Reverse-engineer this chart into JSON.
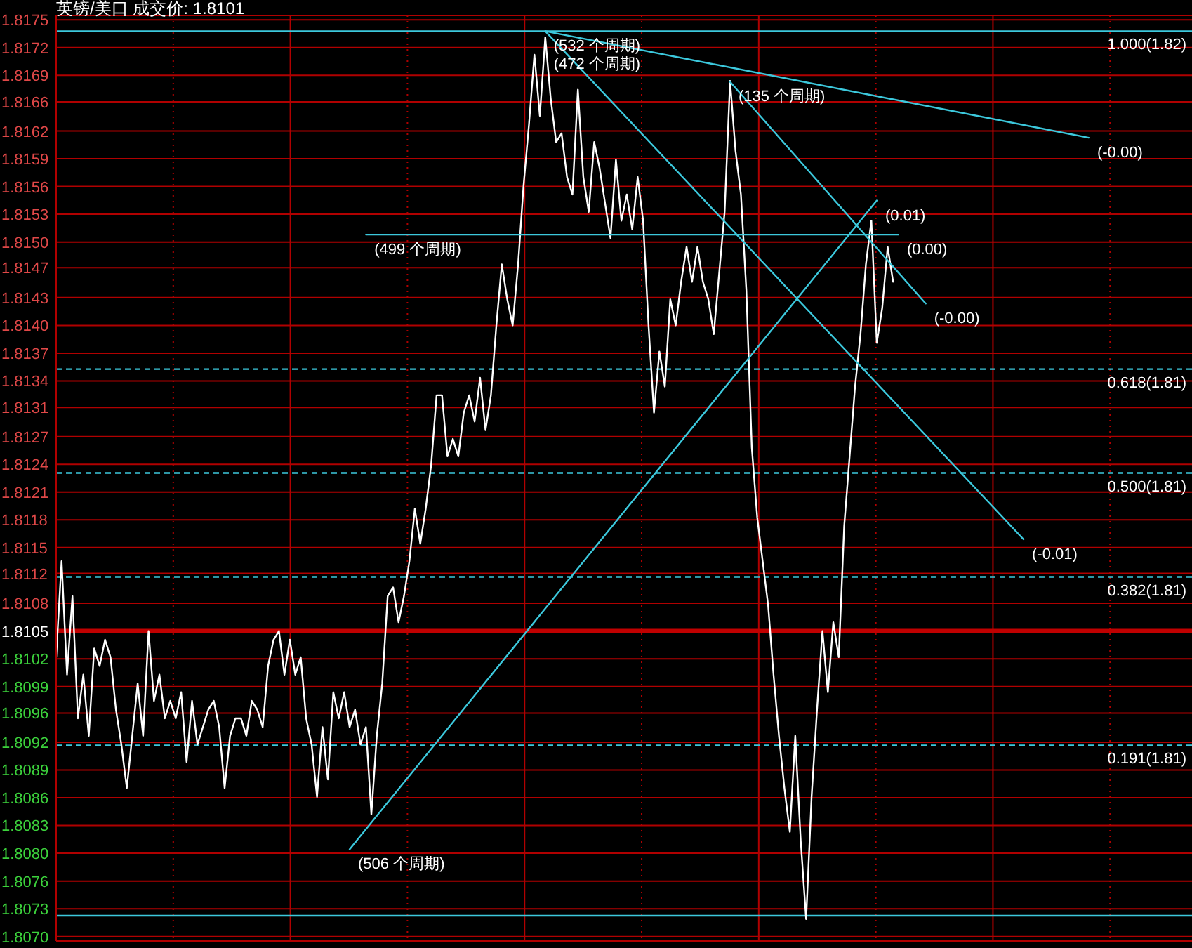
{
  "chart_data": {
    "type": "line",
    "title": "英镑/美口 成交价: 1.8101",
    "marker": "none",
    "grid": true,
    "tick_labels": "y",
    "categories": [
      null,
      null,
      null,
      null,
      null,
      null,
      null,
      null,
      null,
      null,
      null,
      null,
      null,
      null,
      null,
      null,
      null,
      null,
      null,
      null,
      null,
      null,
      null,
      null,
      null,
      null,
      null,
      null,
      null,
      null,
      null,
      null,
      null,
      null,
      null,
      null,
      null,
      null,
      null,
      null,
      null,
      null,
      null,
      null,
      null,
      null,
      null,
      null,
      null,
      null,
      null,
      null,
      null,
      null,
      null,
      null,
      null,
      null,
      null,
      null,
      null,
      null,
      null,
      null,
      null,
      null,
      null,
      null,
      null,
      null,
      null,
      null,
      null,
      null,
      null,
      null,
      null,
      null,
      null,
      null,
      null,
      null,
      null,
      null,
      null,
      null,
      null,
      null,
      null,
      null,
      null,
      null,
      null,
      null,
      null,
      null,
      null,
      null,
      null,
      null,
      null,
      null,
      null,
      null,
      null,
      null,
      null,
      null,
      null,
      null,
      null,
      null,
      null,
      null,
      null,
      null,
      null,
      null,
      null,
      null,
      null,
      null,
      null,
      null,
      null,
      null,
      null,
      null,
      null,
      null,
      null,
      null,
      null,
      null,
      null,
      null,
      null,
      null,
      null,
      null,
      null,
      null,
      null,
      null,
      null,
      null,
      null,
      null,
      null,
      null,
      null,
      null,
      null,
      null,
      null,
      null,
      null,
      null,
      null,
      null,
      null,
      null,
      null,
      null,
      null,
      null,
      null,
      null,
      null,
      null,
      null,
      null,
      null,
      null,
      null,
      null,
      null,
      null,
      null,
      null,
      null,
      null,
      null,
      null,
      null,
      null,
      null,
      null,
      null,
      null,
      null,
      null,
      null,
      null,
      null,
      null,
      null,
      null,
      null,
      null,
      null,
      null,
      null,
      null,
      null,
      null,
      null,
      null,
      null,
      null
    ],
    "ylim": [
      1.80695,
      1.81755
    ],
    "yticks": [
      {
        "value": 1.807,
        "label": "1.8070"
      },
      {
        "value": 1.807318,
        "label": "1.8073"
      },
      {
        "value": 1.807636,
        "label": "1.8076"
      },
      {
        "value": 1.807955,
        "label": "1.8080"
      },
      {
        "value": 1.808273,
        "label": "1.8083"
      },
      {
        "value": 1.808591,
        "label": "1.8086"
      },
      {
        "value": 1.808909,
        "label": "1.8089"
      },
      {
        "value": 1.809227,
        "label": "1.8092"
      },
      {
        "value": 1.80956,
        "label": "1.8096"
      },
      {
        "value": 1.809864,
        "label": "1.8099"
      },
      {
        "value": 1.810182,
        "label": "1.8102"
      },
      {
        "value": 1.8105,
        "label": "1.8105"
      },
      {
        "value": 1.810818,
        "label": "1.8108"
      },
      {
        "value": 1.81116,
        "label": "1.8112"
      },
      {
        "value": 1.811455,
        "label": "1.8115"
      },
      {
        "value": 1.811773,
        "label": "1.8118"
      },
      {
        "value": 1.812091,
        "label": "1.8121"
      },
      {
        "value": 1.812409,
        "label": "1.8124"
      },
      {
        "value": 1.812727,
        "label": "1.8127"
      },
      {
        "value": 1.81306,
        "label": "1.8131"
      },
      {
        "value": 1.813364,
        "label": "1.8134"
      },
      {
        "value": 1.813682,
        "label": "1.8137"
      },
      {
        "value": 1.814,
        "label": "1.8140"
      },
      {
        "value": 1.814318,
        "label": "1.8143"
      },
      {
        "value": 1.81466,
        "label": "1.8147"
      },
      {
        "value": 1.814955,
        "label": "1.8150"
      },
      {
        "value": 1.815273,
        "label": "1.8153"
      },
      {
        "value": 1.815591,
        "label": "1.8156"
      },
      {
        "value": 1.815909,
        "label": "1.8159"
      },
      {
        "value": 1.816227,
        "label": "1.8162"
      },
      {
        "value": 1.81656,
        "label": "1.8166"
      },
      {
        "value": 1.816864,
        "label": "1.8169"
      },
      {
        "value": 1.817182,
        "label": "1.8172"
      },
      {
        "value": 1.8175,
        "label": "1.8175"
      }
    ],
    "ref_lines": [
      {
        "axis": "y",
        "value": 1.8105,
        "color": "#c00000",
        "line_style": "solid"
      },
      {
        "axis": "y",
        "value": 1.81737,
        "label": "1.000(1.82)",
        "color": "#3cc8dc",
        "line_style": "solid"
      },
      {
        "axis": "y",
        "value": 1.8135,
        "label": "0.618(1.81)",
        "color": "#3cc8dc",
        "line_style": "dashed"
      },
      {
        "axis": "y",
        "value": 1.81231,
        "label": "0.500(1.81)",
        "color": "#3cc8dc",
        "line_style": "dashed"
      },
      {
        "axis": "y",
        "value": 1.81112,
        "label": "0.382(1.81)",
        "color": "#3cc8dc",
        "line_style": "dashed"
      },
      {
        "axis": "y",
        "value": 1.80919,
        "label": "0.191(1.81)",
        "color": "#3cc8dc",
        "line_style": "dashed"
      },
      {
        "axis": "y",
        "value": 1.80724,
        "color": "#3cc8dc",
        "line_style": "solid"
      }
    ],
    "annotations": [
      "(532 个周期)",
      "(472 个周期)",
      "(135 个周期)",
      "(506 个周期)",
      "(499 个周期)"
    ],
    "series": [
      {
        "color": "#ffffff",
        "values": [
          1.8102,
          1.8113,
          1.81,
          1.8109,
          1.8095,
          1.81,
          1.8093,
          1.8103,
          1.8101,
          1.8104,
          1.8102,
          1.8096,
          1.8092,
          1.8087,
          1.8093,
          1.8099,
          1.8093,
          1.8105,
          1.8097,
          1.81,
          1.8095,
          1.8097,
          1.8095,
          1.8098,
          1.809,
          1.8097,
          1.8092,
          1.8094,
          1.8096,
          1.8097,
          1.8094,
          1.8087,
          1.8093,
          1.8095,
          1.8095,
          1.8093,
          1.8097,
          1.8096,
          1.8094,
          1.8101,
          1.8104,
          1.8105,
          1.81,
          1.8104,
          1.81,
          1.8102,
          1.8095,
          1.8092,
          1.8086,
          1.8094,
          1.8088,
          1.8098,
          1.8095,
          1.8098,
          1.8094,
          1.8096,
          1.8092,
          1.8094,
          1.8084,
          1.8093,
          1.8099,
          1.8109,
          1.811,
          1.8106,
          1.8109,
          1.8113,
          1.8119,
          1.8115,
          1.8119,
          1.8124,
          1.8132,
          1.8132,
          1.8125,
          1.8127,
          1.8125,
          1.813,
          1.8132,
          1.8129,
          1.8134,
          1.8128,
          1.8132,
          1.814,
          1.8147,
          1.8143,
          1.814,
          1.8147,
          1.8156,
          1.8163,
          1.8171,
          1.8164,
          1.8173,
          1.8166,
          1.8161,
          1.8162,
          1.8157,
          1.8155,
          1.8167,
          1.8157,
          1.8153,
          1.8161,
          1.8158,
          1.8154,
          1.815,
          1.8159,
          1.8152,
          1.8155,
          1.8151,
          1.8157,
          1.8152,
          1.814,
          1.813,
          1.8137,
          1.8133,
          1.8143,
          1.814,
          1.8145,
          1.8149,
          1.8145,
          1.8149,
          1.8145,
          1.8143,
          1.8139,
          1.8146,
          1.8153,
          1.8168,
          1.816,
          1.8155,
          1.8144,
          1.8126,
          1.8118,
          1.8113,
          1.8108,
          1.81,
          1.8093,
          1.8087,
          1.8082,
          1.8093,
          1.8081,
          1.8072,
          1.8086,
          1.8096,
          1.8105,
          1.8098,
          1.8106,
          1.8102,
          1.8117,
          1.8125,
          1.8133,
          1.8139,
          1.8147,
          1.8152,
          1.8138,
          1.8142,
          1.8149,
          1.8145,
          null,
          null,
          null,
          null,
          null,
          null,
          null,
          null,
          null,
          null,
          null,
          null,
          null,
          null,
          null,
          null,
          null,
          null,
          null,
          null,
          null,
          null,
          null,
          null,
          null,
          null,
          null,
          null,
          null,
          null,
          null,
          null,
          null,
          null,
          null,
          null,
          null,
          null,
          null,
          null,
          null,
          null,
          null,
          null,
          null,
          null,
          null,
          null,
          null,
          null,
          null,
          null,
          null,
          null,
          null
        ]
      },
      {
        "name": "(-0.00)",
        "color": "#3cc8dc",
        "values": [
          null,
          null,
          null,
          null,
          null,
          null,
          null,
          null,
          null,
          null,
          null,
          null,
          null,
          null,
          null,
          null,
          null,
          null,
          null,
          null,
          null,
          null,
          null,
          null,
          null,
          null,
          null,
          null,
          null,
          null,
          null,
          null,
          null,
          null,
          null,
          null,
          null,
          null,
          null,
          null,
          null,
          null,
          null,
          null,
          null,
          null,
          null,
          null,
          null,
          null,
          null,
          null,
          null,
          null,
          null,
          null,
          null,
          null,
          null,
          null,
          null,
          null,
          null,
          null,
          null,
          null,
          null,
          null,
          null,
          null,
          null,
          null,
          null,
          null,
          null,
          null,
          null,
          null,
          null,
          null,
          null,
          null,
          null,
          null,
          null,
          null,
          null,
          null,
          null,
          null,
          1.81737,
          null,
          null,
          null,
          null,
          null,
          null,
          null,
          null,
          null,
          null,
          null,
          null,
          null,
          null,
          null,
          null,
          null,
          null,
          null,
          null,
          null,
          null,
          null,
          null,
          null,
          null,
          null,
          null,
          null,
          null,
          null,
          null,
          null,
          null,
          null,
          null,
          null,
          null,
          null,
          null,
          null,
          null,
          null,
          null,
          null,
          null,
          null,
          null,
          null,
          null,
          null,
          null,
          null,
          null,
          null,
          null,
          null,
          null,
          null,
          null,
          null,
          null,
          null,
          null,
          null,
          null,
          null,
          null,
          null,
          null,
          null,
          null,
          null,
          null,
          null,
          null,
          null,
          null,
          null,
          null,
          null,
          null,
          null,
          null,
          null,
          null,
          null,
          null,
          null,
          null,
          null,
          null,
          null,
          null,
          null,
          null,
          null,
          null,
          null,
          1.81615,
          null,
          null,
          null,
          null,
          null,
          null,
          null,
          null,
          null,
          null,
          null,
          null,
          null,
          null,
          null,
          null,
          null,
          null,
          null
        ]
      },
      {
        "name": "(-0.01)",
        "color": "#3cc8dc",
        "values": [
          null,
          null,
          null,
          null,
          null,
          null,
          null,
          null,
          null,
          null,
          null,
          null,
          null,
          null,
          null,
          null,
          null,
          null,
          null,
          null,
          null,
          null,
          null,
          null,
          null,
          null,
          null,
          null,
          null,
          null,
          null,
          null,
          null,
          null,
          null,
          null,
          null,
          null,
          null,
          null,
          null,
          null,
          null,
          null,
          null,
          null,
          null,
          null,
          null,
          null,
          null,
          null,
          null,
          null,
          null,
          null,
          null,
          null,
          null,
          null,
          null,
          null,
          null,
          null,
          null,
          null,
          null,
          null,
          null,
          null,
          null,
          null,
          null,
          null,
          null,
          null,
          null,
          null,
          null,
          null,
          null,
          null,
          null,
          null,
          null,
          null,
          null,
          null,
          null,
          null,
          1.81737,
          null,
          null,
          null,
          null,
          null,
          null,
          null,
          null,
          null,
          null,
          null,
          null,
          null,
          null,
          null,
          null,
          null,
          null,
          null,
          null,
          null,
          null,
          null,
          null,
          null,
          null,
          null,
          null,
          null,
          null,
          null,
          null,
          null,
          null,
          null,
          null,
          null,
          null,
          null,
          null,
          null,
          null,
          null,
          null,
          null,
          null,
          null,
          null,
          null,
          null,
          null,
          null,
          null,
          null,
          null,
          null,
          null,
          null,
          null,
          null,
          null,
          null,
          null,
          null,
          null,
          null,
          null,
          null,
          null,
          null,
          null,
          null,
          null,
          null,
          null,
          null,
          null,
          null,
          null,
          null,
          null,
          null,
          null,
          null,
          null,
          null,
          null,
          1.81155,
          null,
          null,
          null,
          null,
          null,
          null,
          null,
          null,
          null,
          null,
          null,
          null,
          null,
          null,
          null,
          null,
          null,
          null,
          null,
          null,
          null,
          null,
          null,
          null,
          null,
          null,
          null,
          null,
          null,
          null,
          null
        ]
      },
      {
        "name": "(-0.00)",
        "color": "#3cc8dc",
        "values": [
          null,
          null,
          null,
          null,
          null,
          null,
          null,
          null,
          null,
          null,
          null,
          null,
          null,
          null,
          null,
          null,
          null,
          null,
          null,
          null,
          null,
          null,
          null,
          null,
          null,
          null,
          null,
          null,
          null,
          null,
          null,
          null,
          null,
          null,
          null,
          null,
          null,
          null,
          null,
          null,
          null,
          null,
          null,
          null,
          null,
          null,
          null,
          null,
          null,
          null,
          null,
          null,
          null,
          null,
          null,
          null,
          null,
          null,
          null,
          null,
          null,
          null,
          null,
          null,
          null,
          null,
          null,
          null,
          null,
          null,
          null,
          null,
          null,
          null,
          null,
          null,
          null,
          null,
          null,
          null,
          null,
          null,
          null,
          null,
          null,
          null,
          null,
          null,
          null,
          null,
          null,
          null,
          null,
          null,
          null,
          null,
          null,
          null,
          null,
          null,
          null,
          null,
          null,
          null,
          null,
          null,
          null,
          null,
          null,
          null,
          null,
          null,
          null,
          null,
          null,
          null,
          null,
          null,
          null,
          null,
          null,
          null,
          null,
          null,
          1.81679,
          null,
          null,
          null,
          null,
          null,
          null,
          null,
          null,
          null,
          null,
          null,
          null,
          null,
          null,
          null,
          null,
          null,
          null,
          null,
          null,
          null,
          null,
          null,
          null,
          null,
          null,
          null,
          null,
          null,
          null,
          null,
          null,
          null,
          null,
          null,
          1.81425,
          null,
          null,
          null,
          null,
          null,
          null,
          null,
          null,
          null,
          null,
          null,
          null,
          null,
          null,
          null,
          null,
          null,
          null,
          null,
          null,
          null,
          null,
          null,
          null,
          null,
          null,
          null,
          null,
          null,
          null,
          null,
          null,
          null,
          null,
          null,
          null,
          null,
          null,
          null,
          null,
          null,
          null,
          null,
          null,
          null,
          null,
          null,
          null,
          null
        ]
      },
      {
        "name": "(0.01)",
        "color": "#3cc8dc",
        "values": [
          null,
          null,
          null,
          null,
          null,
          null,
          null,
          null,
          null,
          null,
          null,
          null,
          null,
          null,
          null,
          null,
          null,
          null,
          null,
          null,
          null,
          null,
          null,
          null,
          null,
          null,
          null,
          null,
          null,
          null,
          null,
          null,
          null,
          null,
          null,
          null,
          null,
          null,
          null,
          null,
          null,
          null,
          null,
          null,
          null,
          null,
          null,
          null,
          null,
          null,
          null,
          null,
          null,
          null,
          1.808,
          null,
          null,
          null,
          null,
          null,
          null,
          null,
          null,
          null,
          null,
          null,
          null,
          null,
          null,
          null,
          null,
          null,
          null,
          null,
          null,
          null,
          null,
          null,
          null,
          null,
          null,
          null,
          null,
          null,
          null,
          null,
          null,
          null,
          null,
          null,
          null,
          null,
          null,
          null,
          null,
          null,
          null,
          null,
          null,
          null,
          null,
          null,
          null,
          null,
          null,
          null,
          null,
          null,
          null,
          null,
          null,
          null,
          null,
          null,
          null,
          null,
          null,
          null,
          null,
          null,
          null,
          null,
          null,
          null,
          null,
          null,
          null,
          null,
          null,
          null,
          null,
          null,
          null,
          null,
          null,
          null,
          null,
          null,
          null,
          null,
          null,
          null,
          null,
          null,
          null,
          null,
          null,
          null,
          null,
          null,
          null,
          1.81543,
          null,
          null,
          null,
          null,
          null,
          null,
          null,
          null,
          null,
          null,
          null,
          null,
          null,
          null,
          null,
          null,
          null,
          null,
          null,
          null,
          null,
          null,
          null,
          null,
          null,
          null,
          null,
          null,
          null,
          null,
          null,
          null,
          null,
          null,
          null,
          null,
          null,
          null,
          null,
          null,
          null,
          null,
          null,
          null,
          null,
          null,
          null,
          null,
          null,
          null,
          null,
          null,
          null,
          null,
          null,
          null,
          null,
          null
        ]
      },
      {
        "name": "(0.00)",
        "color": "#3cc8dc",
        "values": [
          null,
          null,
          null,
          null,
          null,
          null,
          null,
          null,
          null,
          null,
          null,
          null,
          null,
          null,
          null,
          null,
          null,
          null,
          null,
          null,
          null,
          null,
          null,
          null,
          null,
          null,
          null,
          null,
          null,
          null,
          null,
          null,
          null,
          null,
          null,
          null,
          null,
          null,
          null,
          null,
          null,
          null,
          null,
          null,
          null,
          null,
          null,
          null,
          null,
          null,
          null,
          null,
          null,
          null,
          null,
          null,
          null,
          1.81504,
          null,
          null,
          null,
          null,
          null,
          null,
          null,
          null,
          null,
          null,
          null,
          null,
          null,
          null,
          null,
          null,
          null,
          null,
          null,
          null,
          null,
          null,
          null,
          null,
          null,
          null,
          null,
          null,
          null,
          null,
          null,
          null,
          null,
          null,
          null,
          null,
          null,
          null,
          null,
          null,
          null,
          null,
          null,
          null,
          null,
          null,
          null,
          null,
          null,
          null,
          null,
          null,
          null,
          null,
          null,
          null,
          null,
          null,
          null,
          null,
          null,
          null,
          null,
          null,
          null,
          null,
          null,
          null,
          null,
          null,
          null,
          null,
          null,
          null,
          null,
          null,
          null,
          null,
          null,
          null,
          null,
          null,
          null,
          null,
          null,
          null,
          null,
          null,
          null,
          null,
          null,
          null,
          null,
          null,
          null,
          null,
          null,
          1.81504,
          null,
          null,
          null,
          null,
          null,
          null,
          null,
          null,
          null,
          null,
          null,
          null,
          null,
          null,
          null,
          null,
          null,
          null,
          null,
          null,
          null,
          null,
          null,
          null,
          null,
          null,
          null,
          null,
          null,
          null,
          null,
          null,
          null,
          null,
          null,
          null,
          null,
          null,
          null,
          null,
          null,
          null,
          null,
          null,
          null,
          null,
          null,
          null,
          null,
          null,
          null,
          null,
          null,
          null
        ]
      }
    ]
  }
}
